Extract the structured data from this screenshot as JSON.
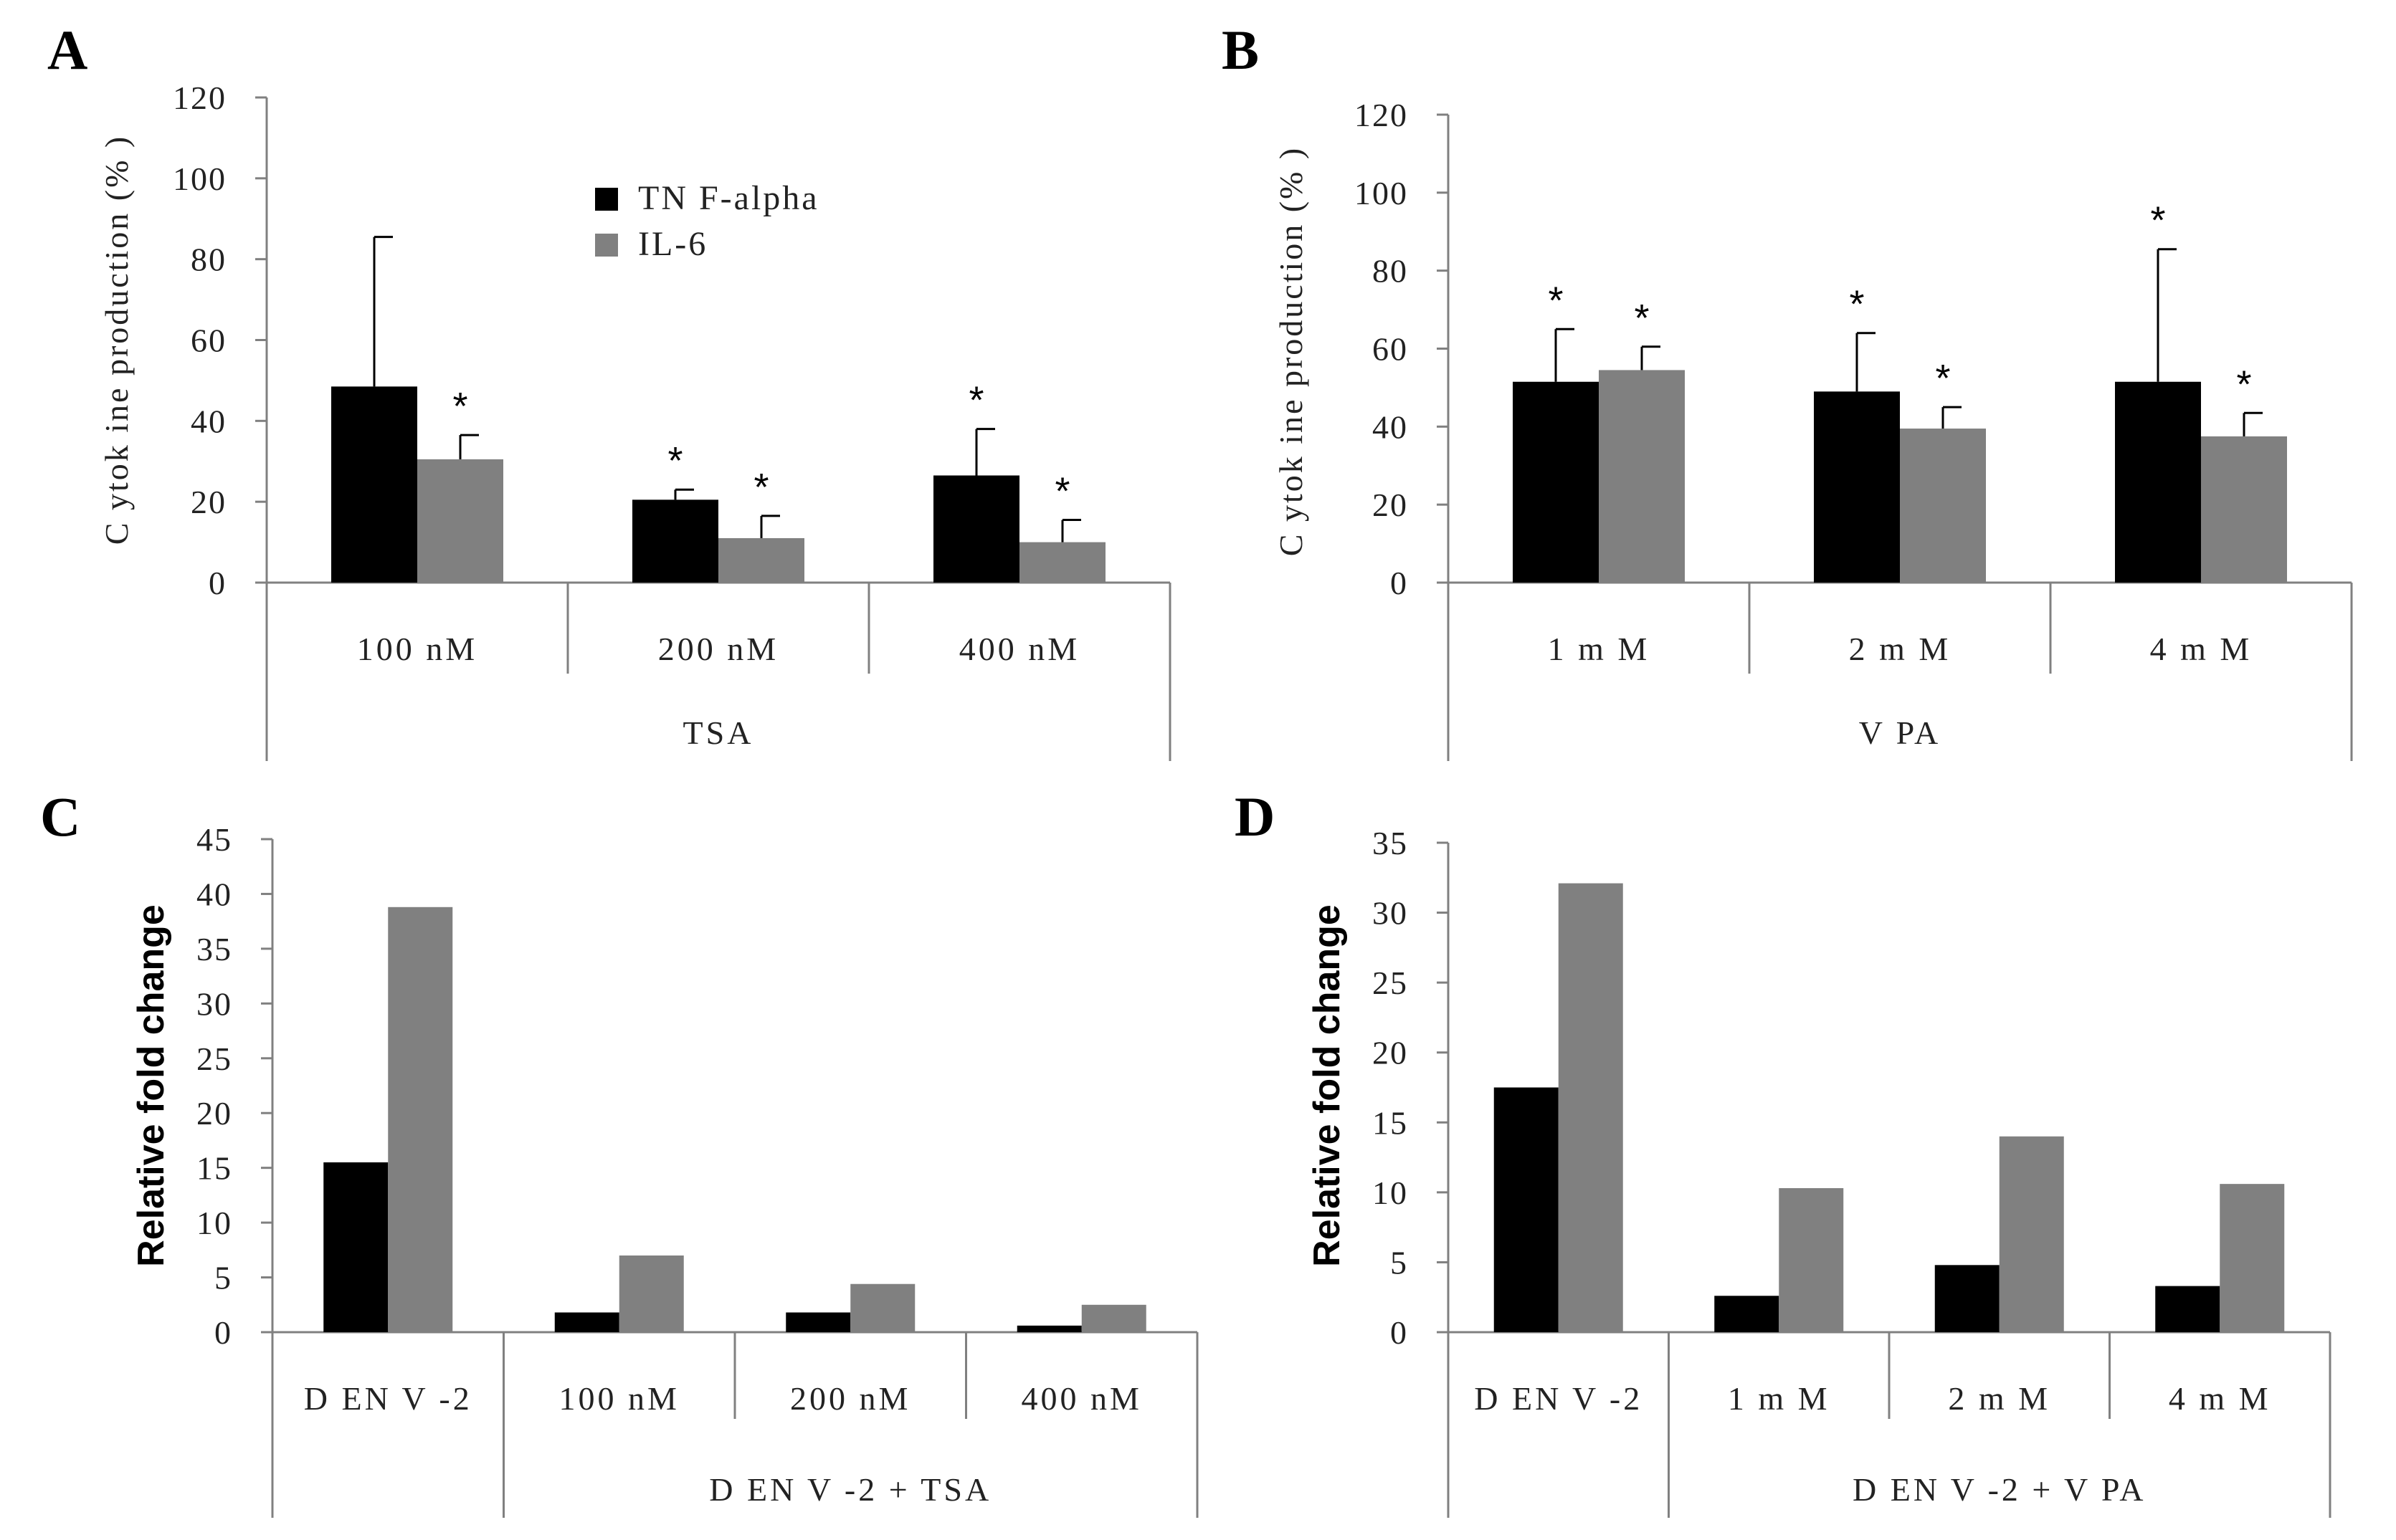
{
  "colors": {
    "tnf": "#000000",
    "il6": "#808080",
    "axis": "#808080"
  },
  "chart_data": [
    {
      "type": "bar",
      "panel": "A",
      "ylabel": "C ytok ine production (% )",
      "ylim": [
        0,
        120
      ],
      "yticks": [
        "0",
        "20",
        "40",
        "60",
        "80",
        "100",
        "120"
      ],
      "tick_values": [
        0,
        20,
        40,
        60,
        80,
        100,
        120
      ],
      "categories": [
        "100 nM",
        "200 nM",
        "400 nM"
      ],
      "group_label": "TSA",
      "legend": [
        "TN F-alpha",
        "IL-6"
      ],
      "series": [
        {
          "name": "TNF-alpha",
          "values": [
            48.5,
            20.5,
            26.5
          ],
          "errors": [
            37,
            2.5,
            11.5
          ],
          "sig": [
            "",
            "*",
            "*"
          ]
        },
        {
          "name": "IL-6",
          "values": [
            30.5,
            11,
            10
          ],
          "errors": [
            6,
            5.5,
            5.5
          ],
          "sig": [
            "*",
            "*",
            "*"
          ]
        }
      ]
    },
    {
      "type": "bar",
      "panel": "B",
      "ylabel": "C ytok ine production (% )",
      "ylim": [
        0,
        120
      ],
      "yticks": [
        "0",
        "20",
        "40",
        "60",
        "80",
        "100",
        "120"
      ],
      "tick_values": [
        0,
        20,
        40,
        60,
        80,
        100,
        120
      ],
      "categories": [
        "1 m M",
        "2 m M",
        "4 m M"
      ],
      "group_label": "V PA",
      "series": [
        {
          "name": "TNF-alpha",
          "values": [
            51.5,
            49,
            51.5
          ],
          "errors": [
            13.5,
            15,
            34
          ],
          "sig": [
            "*",
            "*",
            "*"
          ]
        },
        {
          "name": "IL-6",
          "values": [
            54.5,
            39.5,
            37.5
          ],
          "errors": [
            6,
            5.5,
            6
          ],
          "sig": [
            "*",
            "*",
            "*"
          ]
        }
      ]
    },
    {
      "type": "bar",
      "panel": "C",
      "ylabel": "Relative fold change",
      "ylim": [
        0,
        45
      ],
      "yticks": [
        "0",
        "5",
        "10",
        "15",
        "20",
        "25",
        "30",
        "35",
        "40",
        "45"
      ],
      "tick_values": [
        0,
        5,
        10,
        15,
        20,
        25,
        30,
        35,
        40,
        45
      ],
      "categories": [
        "D EN V -2",
        "100 nM",
        "200 nM",
        "400 nM"
      ],
      "group_label": "D EN V -2 + TSA",
      "series": [
        {
          "name": "TNF-alpha",
          "values": [
            15.5,
            1.8,
            1.8,
            0.6
          ]
        },
        {
          "name": "IL-6",
          "values": [
            38.8,
            7,
            4.4,
            2.5
          ]
        }
      ]
    },
    {
      "type": "bar",
      "panel": "D",
      "ylabel": "Relative fold change",
      "ylim": [
        0,
        35
      ],
      "yticks": [
        "0",
        "5",
        "10",
        "15",
        "20",
        "25",
        "30",
        "35"
      ],
      "tick_values": [
        0,
        5,
        10,
        15,
        20,
        25,
        30,
        35
      ],
      "categories": [
        "D EN V -2",
        "1 m M",
        "2 m M",
        "4 m M"
      ],
      "group_label": "D EN V -2 + V PA",
      "series": [
        {
          "name": "TNF-alpha",
          "values": [
            17.5,
            2.6,
            4.8,
            3.3
          ]
        },
        {
          "name": "IL-6",
          "values": [
            32.1,
            10.3,
            14,
            10.6
          ]
        }
      ]
    }
  ]
}
